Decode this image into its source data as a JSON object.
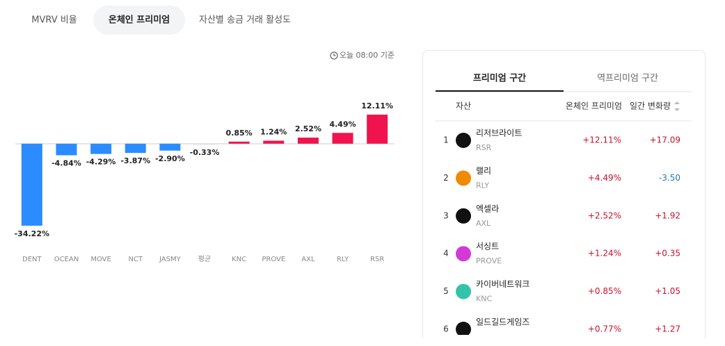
{
  "tabs": [
    "MVRV 비율",
    "온체인 프리미엄",
    "자산별 송금 거래 활성도"
  ],
  "timestamp": "오늘 08:00 기준",
  "chart_data": {
    "type": "bar",
    "categories": [
      "DENT",
      "OCEAN",
      "MOVE",
      "NCT",
      "JASMY",
      "평균",
      "KNC",
      "PROVE",
      "AXL",
      "RLY",
      "RSR"
    ],
    "values": [
      -34.22,
      -4.84,
      -4.29,
      -3.87,
      -2.9,
      -0.33,
      0.85,
      1.24,
      2.52,
      4.49,
      12.11
    ],
    "value_labels": [
      "-34.22%",
      "-4.84%",
      "-4.29%",
      "-3.87%",
      "-2.90%",
      "-0.33%",
      "0.85%",
      "1.24%",
      "2.52%",
      "4.49%",
      "12.11%"
    ],
    "colors": [
      "#2b8cff",
      "#2b8cff",
      "#2b8cff",
      "#2b8cff",
      "#2b8cff",
      "#c7d4e2",
      "#f0134d",
      "#f0134d",
      "#f0134d",
      "#f0134d",
      "#f0134d"
    ],
    "ylim": [
      -36,
      15
    ]
  },
  "table": {
    "tabs": [
      "프리미엄 구간",
      "역프리미엄 구간"
    ],
    "headers": [
      "자산",
      "온체인 프리미엄",
      "일간 변화량"
    ],
    "rows": [
      {
        "rank": "1",
        "name": "리저브라이트",
        "symbol": "RSR",
        "premium": "+12.11%",
        "change": "+17.09"
      },
      {
        "rank": "2",
        "name": "랠리",
        "symbol": "RLY",
        "premium": "+4.49%",
        "change": "-3.50"
      },
      {
        "rank": "3",
        "name": "엑셀라",
        "symbol": "AXL",
        "premium": "+2.52%",
        "change": "+1.92"
      },
      {
        "rank": "4",
        "name": "서싱트",
        "symbol": "PROVE",
        "premium": "+1.24%",
        "change": "+0.35"
      },
      {
        "rank": "5",
        "name": "카이버네트워크",
        "symbol": "KNC",
        "premium": "+0.85%",
        "change": "+1.05"
      },
      {
        "rank": "6",
        "name": "일드길드게임즈",
        "symbol": "",
        "premium": "+0.77%",
        "change": "+1.27"
      }
    ]
  }
}
